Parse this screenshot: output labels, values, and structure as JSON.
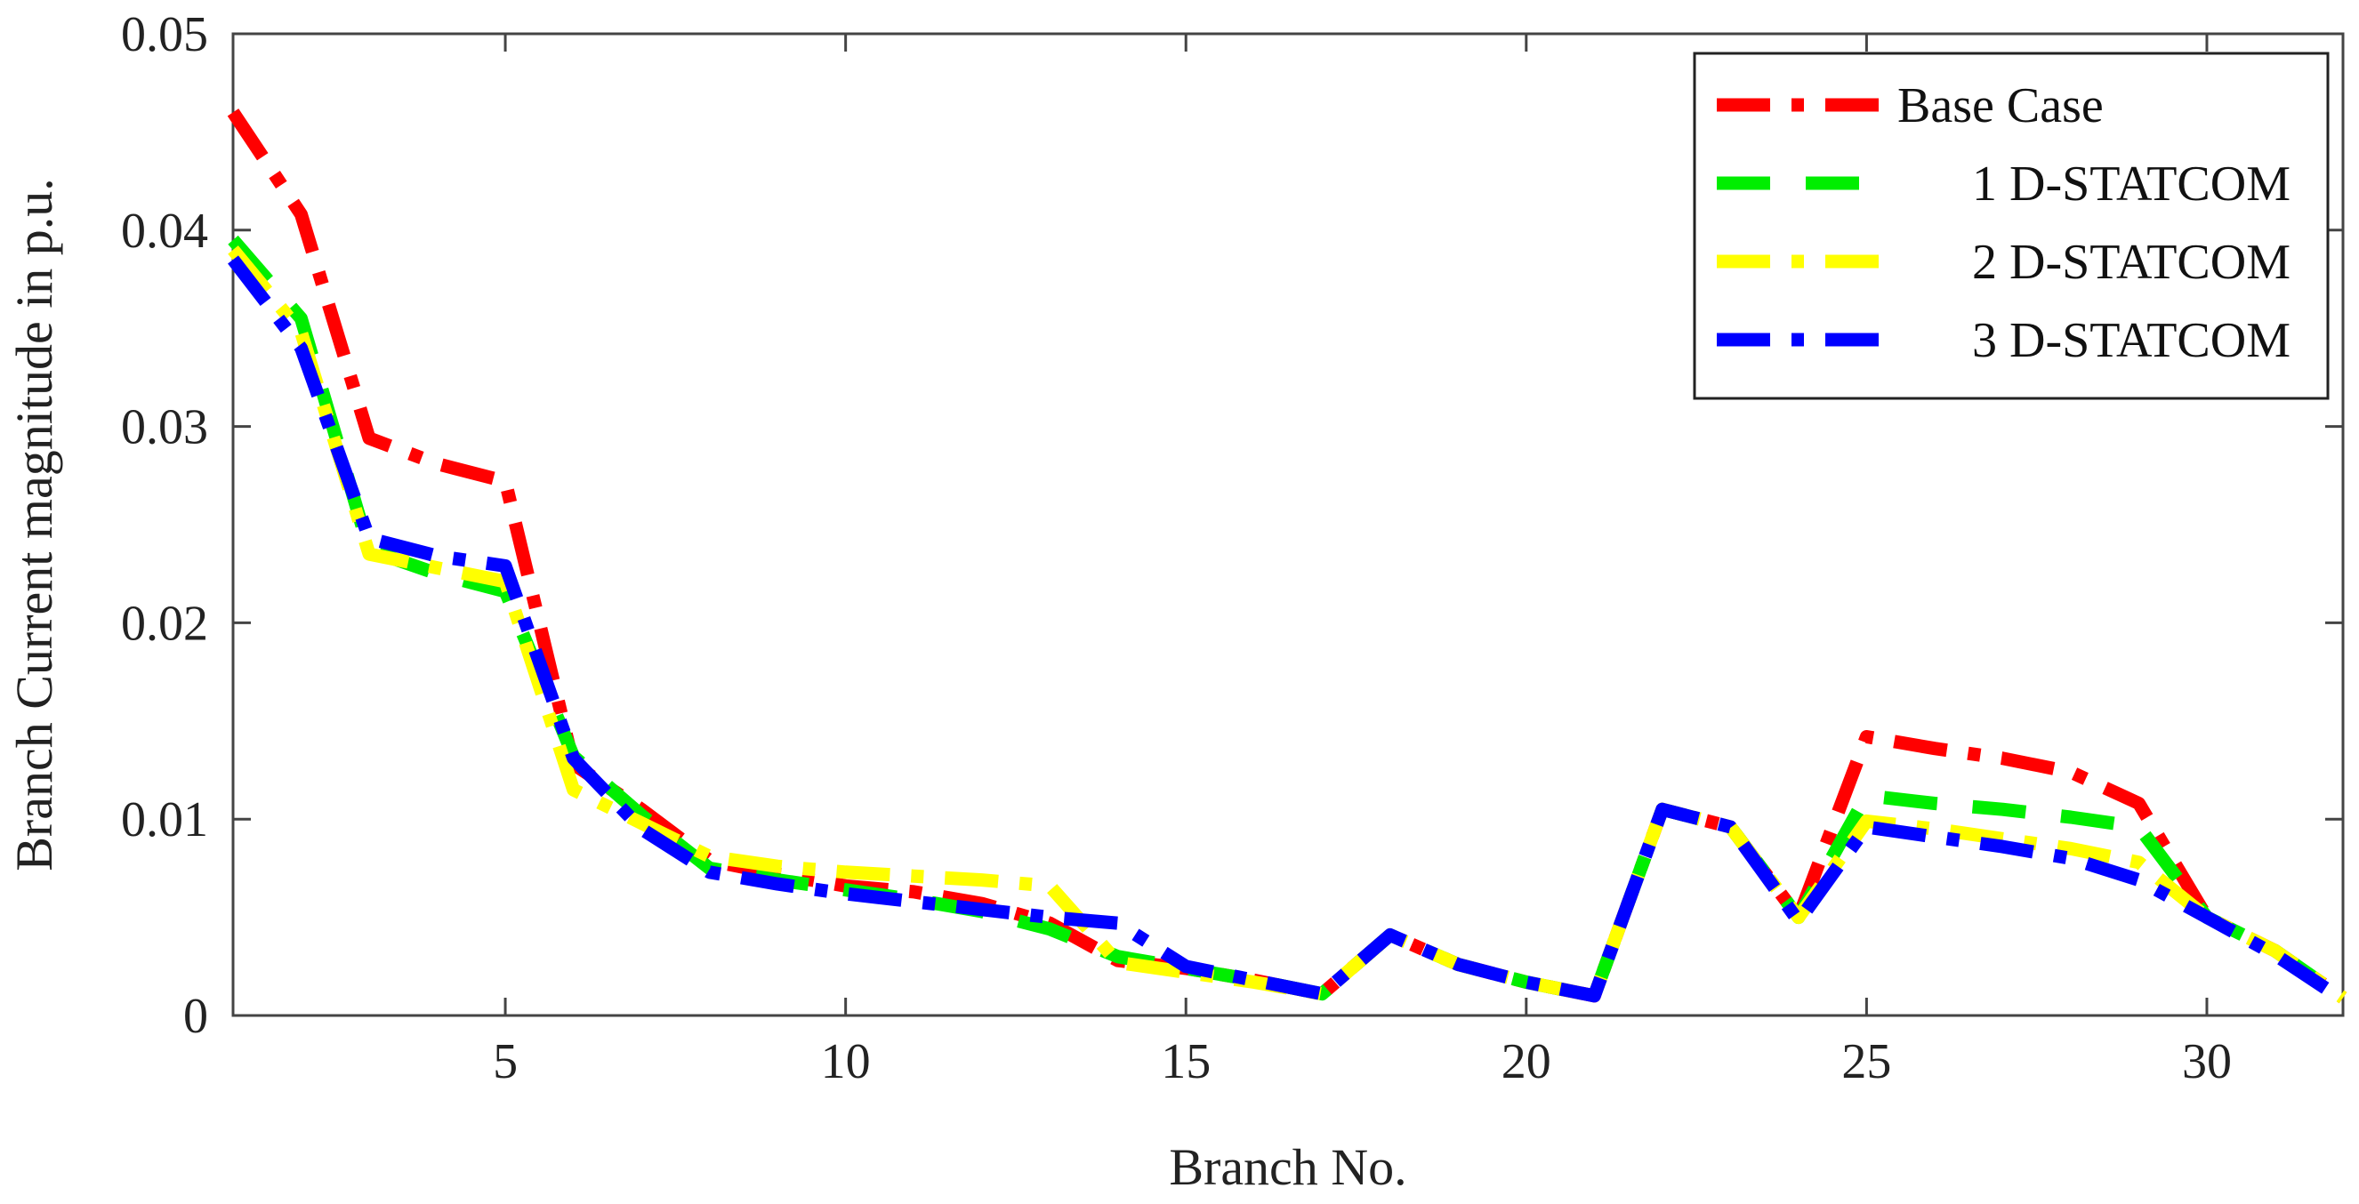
{
  "chart_data": {
    "type": "line",
    "title": "",
    "xlabel": "Branch No.",
    "ylabel": "Branch Current magnitude in p.u.",
    "xlim": [
      1,
      32
    ],
    "ylim": [
      0,
      0.05
    ],
    "xticks": [
      5,
      10,
      15,
      20,
      25,
      30
    ],
    "xtick_labels": [
      "5",
      "10",
      "15",
      "20",
      "25",
      "30"
    ],
    "yticks": [
      0,
      0.01,
      0.02,
      0.03,
      0.04,
      0.05
    ],
    "ytick_labels": [
      "0",
      "0.01",
      "0.02",
      "0.03",
      "0.04",
      "0.05"
    ],
    "grid": false,
    "legend_position": "top-right",
    "x": [
      1,
      2,
      3,
      4,
      5,
      6,
      7,
      8,
      9,
      10,
      11,
      12,
      13,
      14,
      15,
      16,
      17,
      18,
      19,
      20,
      21,
      22,
      23,
      24,
      25,
      26,
      27,
      28,
      29,
      30,
      31,
      32
    ],
    "series": [
      {
        "name": "Base Case",
        "color": "#ff0000",
        "dash": "dashdot",
        "values": [
          0.046,
          0.0408,
          0.0294,
          0.0281,
          0.0272,
          0.0128,
          0.0105,
          0.0079,
          0.0072,
          0.0066,
          0.0063,
          0.0057,
          0.0047,
          0.0028,
          0.0024,
          0.0018,
          0.0011,
          0.0041,
          0.0026,
          0.0017,
          0.001,
          0.0105,
          0.0096,
          0.005,
          0.0142,
          0.0136,
          0.0131,
          0.0124,
          0.0108,
          0.005,
          0.0033,
          0.0009
        ]
      },
      {
        "name": "1 D-STATCOM",
        "color": "#00ee00",
        "dash": "dash",
        "values": [
          0.0395,
          0.0355,
          0.0237,
          0.0225,
          0.0216,
          0.0132,
          0.0102,
          0.0075,
          0.0069,
          0.0064,
          0.0059,
          0.0053,
          0.0044,
          0.003,
          0.0024,
          0.0018,
          0.0011,
          0.0041,
          0.0026,
          0.0017,
          0.001,
          0.0105,
          0.0096,
          0.005,
          0.0112,
          0.0108,
          0.0105,
          0.0101,
          0.0096,
          0.005,
          0.0033,
          0.0009
        ]
      },
      {
        "name": "2 D-STATCOM",
        "color": "#ffff00",
        "dash": "dashdot",
        "values": [
          0.039,
          0.0348,
          0.0235,
          0.0228,
          0.0221,
          0.0115,
          0.0098,
          0.0081,
          0.0076,
          0.0073,
          0.0071,
          0.0069,
          0.0066,
          0.0027,
          0.0022,
          0.0017,
          0.0011,
          0.0041,
          0.0026,
          0.0017,
          0.001,
          0.0105,
          0.0096,
          0.005,
          0.0099,
          0.0095,
          0.009,
          0.0085,
          0.0078,
          0.005,
          0.0033,
          0.0009
        ]
      },
      {
        "name": "3 D-STATCOM",
        "color": "#0000ff",
        "dash": "dashdot",
        "values": [
          0.0385,
          0.034,
          0.0243,
          0.0234,
          0.0229,
          0.0131,
          0.0095,
          0.0073,
          0.0067,
          0.0062,
          0.0058,
          0.0054,
          0.005,
          0.0047,
          0.0025,
          0.0018,
          0.0011,
          0.0041,
          0.0026,
          0.0017,
          0.001,
          0.0105,
          0.0096,
          0.0048,
          0.0096,
          0.0091,
          0.0086,
          0.008,
          0.0069,
          0.005,
          0.0031,
          0.0008
        ]
      }
    ]
  }
}
